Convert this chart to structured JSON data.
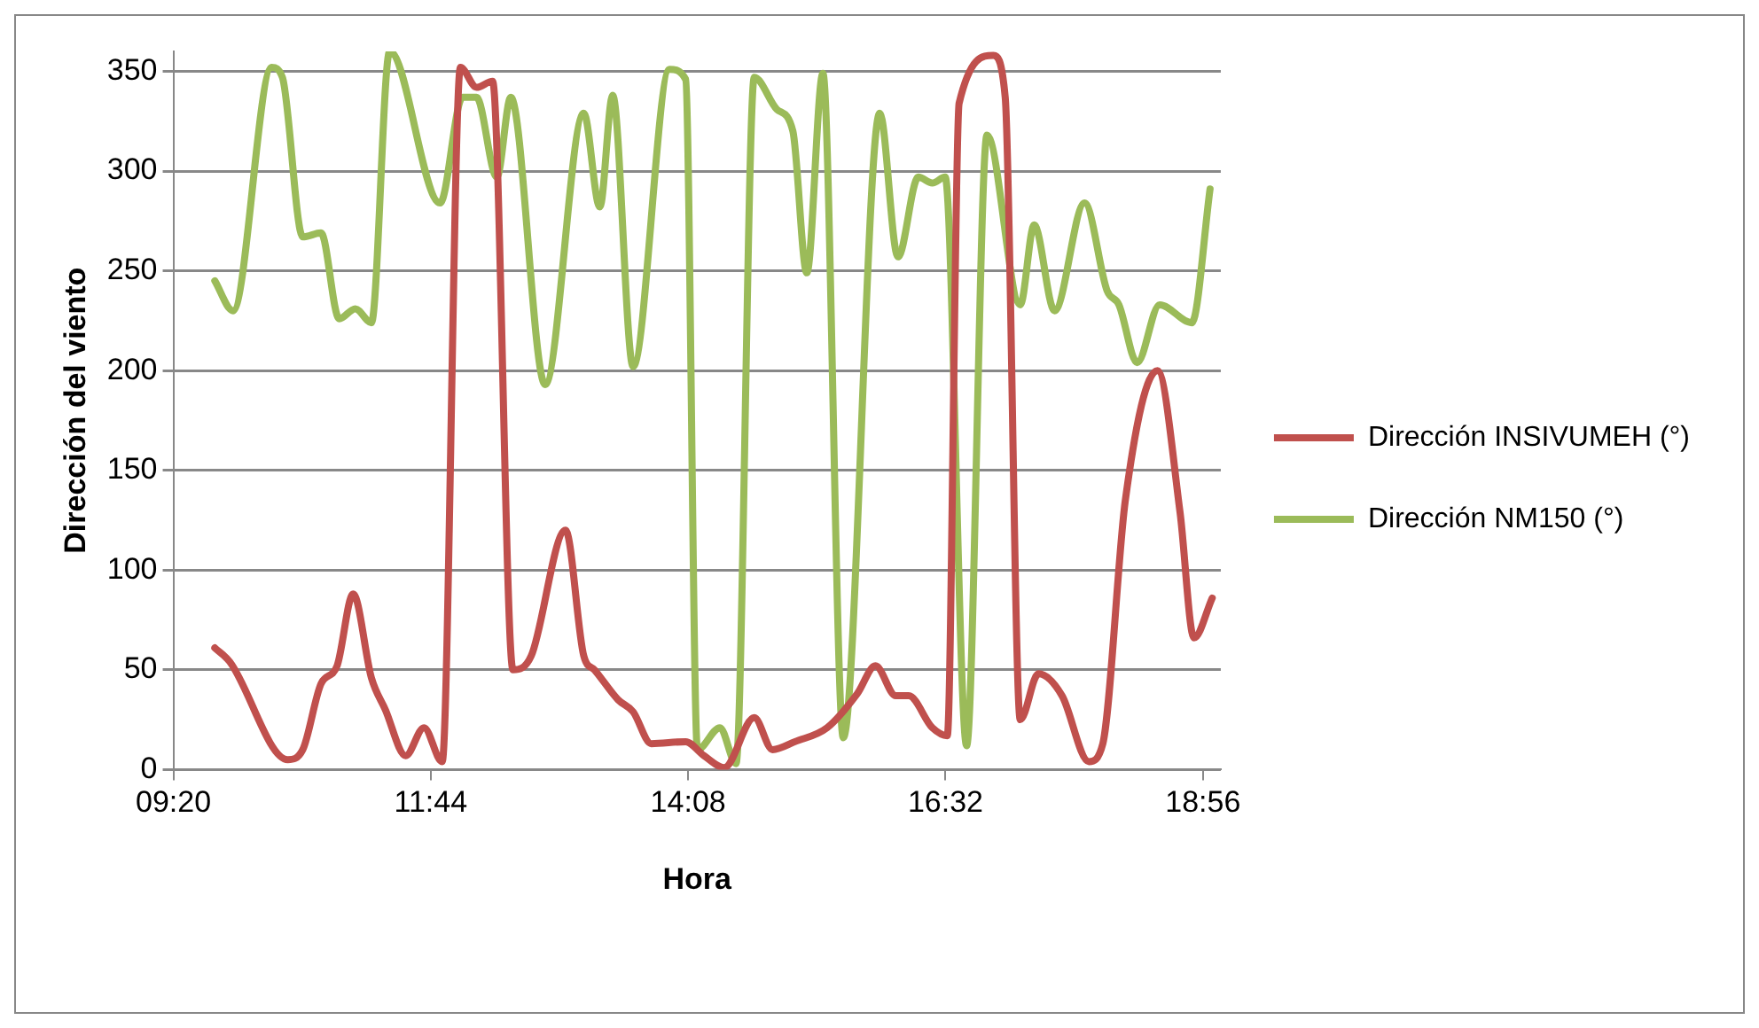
{
  "chart_data": {
    "type": "line",
    "xlabel": "Hora",
    "ylabel": "Dirección del viento",
    "xlim": [
      9.3333,
      19.1
    ],
    "xticks": [
      {
        "value": 9.3333,
        "label": "09:20"
      },
      {
        "value": 11.7333,
        "label": "11:44"
      },
      {
        "value": 14.1333,
        "label": "14:08"
      },
      {
        "value": 16.5333,
        "label": "16:32"
      },
      {
        "value": 18.9333,
        "label": "18:56"
      }
    ],
    "ylim": [
      0,
      360
    ],
    "yticks": [
      0,
      50,
      100,
      150,
      200,
      250,
      300,
      350
    ],
    "grid": "y",
    "legend": "right",
    "marker": "none",
    "line_style": "solid",
    "series": [
      {
        "name": "Dirección INSIVUMEH (°)",
        "color": "#c0504d",
        "x": [
          9.72,
          9.86,
          10.4,
          10.54,
          10.71,
          10.86,
          11.01,
          11.18,
          11.31,
          11.5,
          11.67,
          11.84,
          12.01,
          12.16,
          12.31,
          12.5,
          12.67,
          12.99,
          13.16,
          13.26,
          13.48,
          13.62,
          13.79,
          14.11,
          14.28,
          14.47,
          14.75,
          14.92,
          15.13,
          15.43,
          15.71,
          15.88,
          16.07,
          16.19,
          16.41,
          16.55,
          16.66,
          16.98,
          17.09,
          17.23,
          17.4,
          17.62,
          17.87,
          18.0,
          18.21,
          18.51,
          18.72,
          18.85,
          19.02
        ],
        "values": [
          61,
          54,
          5,
          10,
          43,
          52,
          88,
          46,
          30,
          7,
          21,
          4,
          352,
          342,
          345,
          50,
          57,
          120,
          57,
          50,
          35,
          29,
          13,
          14,
          7,
          1,
          26,
          10,
          14,
          21,
          38,
          52,
          37,
          37,
          21,
          17,
          334,
          358,
          337,
          25,
          48,
          37,
          4,
          13,
          135,
          200,
          129,
          66,
          86
        ]
      },
      {
        "name": "Dirección NM150 (°)",
        "color": "#9bbb59",
        "x": [
          9.72,
          9.89,
          10.25,
          10.35,
          10.54,
          10.71,
          10.88,
          11.03,
          11.18,
          11.35,
          11.82,
          12.03,
          12.16,
          12.35,
          12.48,
          12.8,
          13.16,
          13.31,
          13.43,
          13.62,
          13.96,
          14.11,
          14.22,
          14.43,
          14.58,
          14.75,
          14.96,
          15.11,
          15.24,
          15.39,
          15.58,
          15.92,
          16.09,
          16.28,
          16.41,
          16.53,
          16.73,
          16.92,
          17.23,
          17.36,
          17.55,
          17.83,
          18.04,
          18.15,
          18.32,
          18.53,
          18.83,
          19.0
        ],
        "values": [
          245,
          230,
          352,
          347,
          267,
          269,
          226,
          231,
          224,
          360,
          284,
          337,
          337,
          297,
          337,
          193,
          329,
          282,
          338,
          202,
          351,
          346,
          10,
          21,
          3,
          347,
          331,
          320,
          249,
          349,
          16,
          329,
          257,
          297,
          294,
          297,
          12,
          318,
          233,
          273,
          230,
          284,
          240,
          233,
          204,
          233,
          224,
          291
        ]
      }
    ]
  }
}
